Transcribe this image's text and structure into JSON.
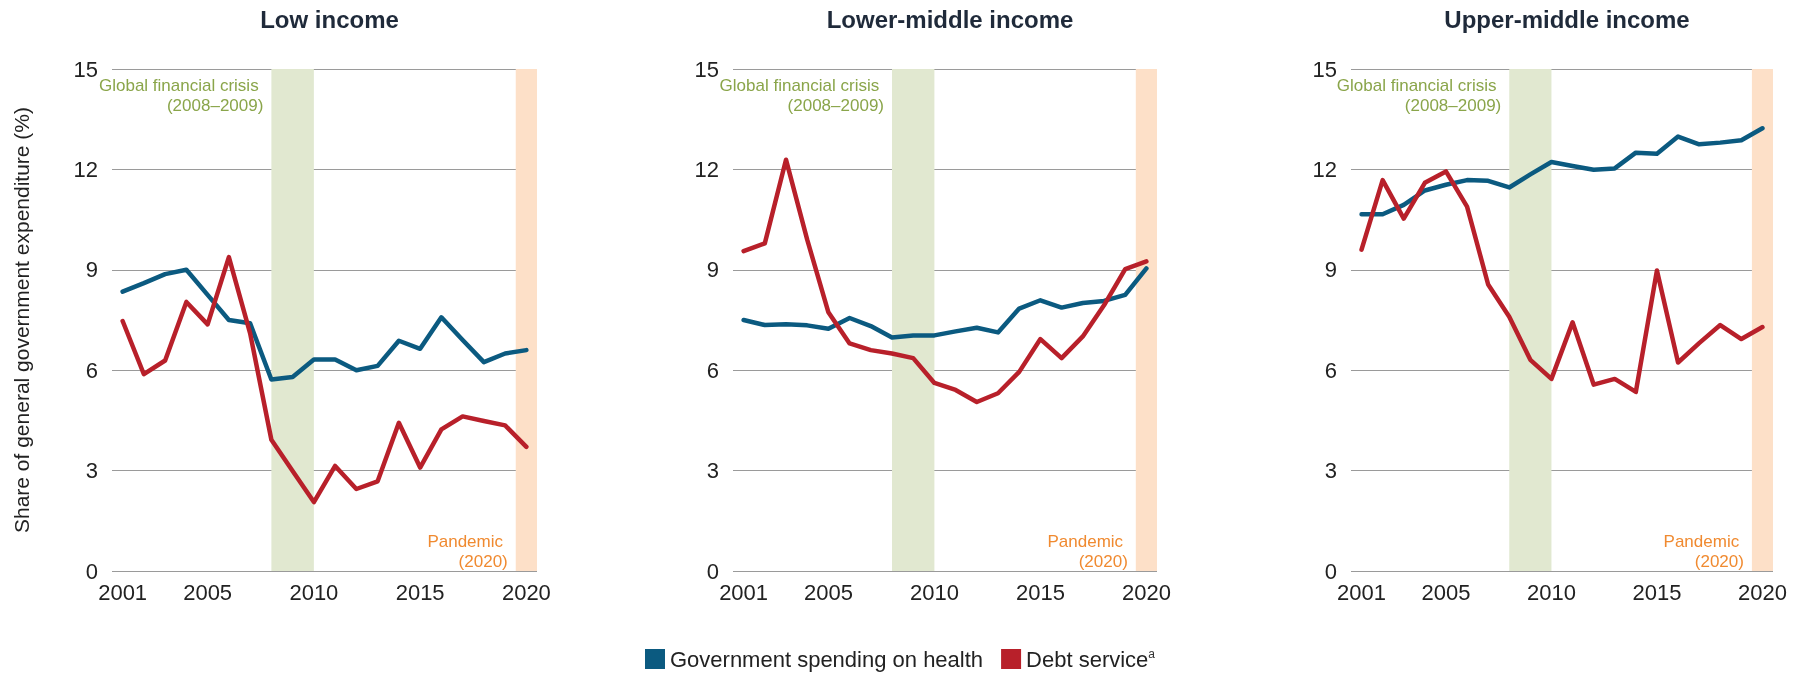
{
  "chart_data": [
    {
      "type": "line",
      "title": "Low income",
      "ylabel": "Share of general government expenditure (%)",
      "x": [
        2001,
        2002,
        2003,
        2004,
        2005,
        2006,
        2007,
        2008,
        2009,
        2010,
        2011,
        2012,
        2013,
        2014,
        2015,
        2016,
        2017,
        2018,
        2019,
        2020
      ],
      "xlim": [
        2000.5,
        2020.5
      ],
      "xticks": [
        2001,
        2005,
        2010,
        2015,
        2020
      ],
      "ylim": [
        0,
        15
      ],
      "yticks": [
        0,
        3,
        6,
        9,
        12,
        15
      ],
      "grid": "y",
      "series": [
        {
          "color": "#0b5a80",
          "values": [
            8.35,
            8.6,
            8.87,
            9.0,
            8.25,
            7.5,
            7.4,
            5.72,
            5.8,
            6.32,
            6.32,
            6.0,
            6.13,
            6.88,
            6.64,
            7.58,
            6.9,
            6.24,
            6.5,
            6.6
          ]
        },
        {
          "color": "#b8202a",
          "values": [
            7.47,
            5.88,
            6.29,
            8.04,
            7.37,
            9.38,
            7.1,
            3.92,
            2.99,
            2.06,
            3.14,
            2.45,
            2.68,
            4.43,
            3.09,
            4.23,
            4.62,
            4.48,
            4.35,
            3.71
          ]
        }
      ],
      "bands": [
        {
          "axis": "x",
          "from": 2008,
          "to": 2010,
          "label": "Global financial crisis (2008–2009)",
          "color": "#e1e8d0"
        },
        {
          "axis": "x",
          "from": 2019.5,
          "to": 2020.5,
          "label": "Pandemic (2020)",
          "color": "#fde0c8"
        }
      ]
    },
    {
      "type": "line",
      "title": "Lower-middle income",
      "x": [
        2001,
        2002,
        2003,
        2004,
        2005,
        2006,
        2007,
        2008,
        2009,
        2010,
        2011,
        2012,
        2013,
        2014,
        2015,
        2016,
        2017,
        2018,
        2019,
        2020
      ],
      "xlim": [
        2000.5,
        2020.5
      ],
      "xticks": [
        2001,
        2005,
        2010,
        2015,
        2020
      ],
      "ylim": [
        0,
        15
      ],
      "yticks": [
        0,
        3,
        6,
        9,
        12,
        15
      ],
      "grid": "y",
      "legend": "bottom",
      "series": [
        {
          "name": "Government spending on health",
          "color": "#0b5a80",
          "values": [
            7.5,
            7.35,
            7.37,
            7.34,
            7.24,
            7.56,
            7.32,
            6.98,
            7.04,
            7.04,
            7.16,
            7.27,
            7.13,
            7.84,
            8.09,
            7.87,
            8.01,
            8.07,
            8.25,
            9.04
          ]
        },
        {
          "name": "Debt service$^{a}$",
          "color": "#b8202a",
          "values": [
            9.56,
            9.79,
            12.29,
            9.9,
            7.73,
            6.8,
            6.6,
            6.5,
            6.36,
            5.62,
            5.41,
            5.05,
            5.31,
            5.95,
            6.93,
            6.36,
            7.01,
            7.94,
            9.02,
            9.25
          ]
        }
      ],
      "bands": [
        {
          "axis": "x",
          "from": 2008,
          "to": 2010,
          "label": "Global financial crisis (2008–2009)",
          "color": "#e1e8d0"
        },
        {
          "axis": "x",
          "from": 2019.5,
          "to": 2020.5,
          "label": "Pandemic (2020)",
          "color": "#fde0c8"
        }
      ]
    },
    {
      "type": "line",
      "title": "Upper-middle income",
      "x": [
        2001,
        2002,
        2003,
        2004,
        2005,
        2006,
        2007,
        2008,
        2009,
        2010,
        2011,
        2012,
        2013,
        2014,
        2015,
        2016,
        2017,
        2018,
        2019,
        2020
      ],
      "xlim": [
        2000.5,
        2020.5
      ],
      "xticks": [
        2001,
        2005,
        2010,
        2015,
        2020
      ],
      "ylim": [
        0,
        15
      ],
      "yticks": [
        0,
        3,
        6,
        9,
        12,
        15
      ],
      "grid": "y",
      "series": [
        {
          "color": "#0b5a80",
          "values": [
            10.66,
            10.66,
            10.94,
            11.37,
            11.54,
            11.68,
            11.66,
            11.46,
            11.85,
            12.22,
            12.1,
            11.99,
            12.03,
            12.5,
            12.47,
            12.98,
            12.75,
            12.8,
            12.87,
            13.23
          ]
        },
        {
          "color": "#b8202a",
          "values": [
            9.6,
            11.68,
            10.53,
            11.6,
            11.94,
            10.89,
            8.56,
            7.6,
            6.31,
            5.74,
            7.43,
            5.57,
            5.74,
            5.35,
            8.98,
            6.23,
            6.81,
            7.35,
            6.93,
            7.29
          ]
        }
      ],
      "bands": [
        {
          "axis": "x",
          "from": 2008,
          "to": 2010,
          "label": "Global financial crisis (2008–2009)",
          "color": "#e1e8d0"
        },
        {
          "axis": "x",
          "from": 2019.5,
          "to": 2020.5,
          "label": "Pandemic (2020)",
          "color": "#fde0c8"
        }
      ]
    }
  ]
}
